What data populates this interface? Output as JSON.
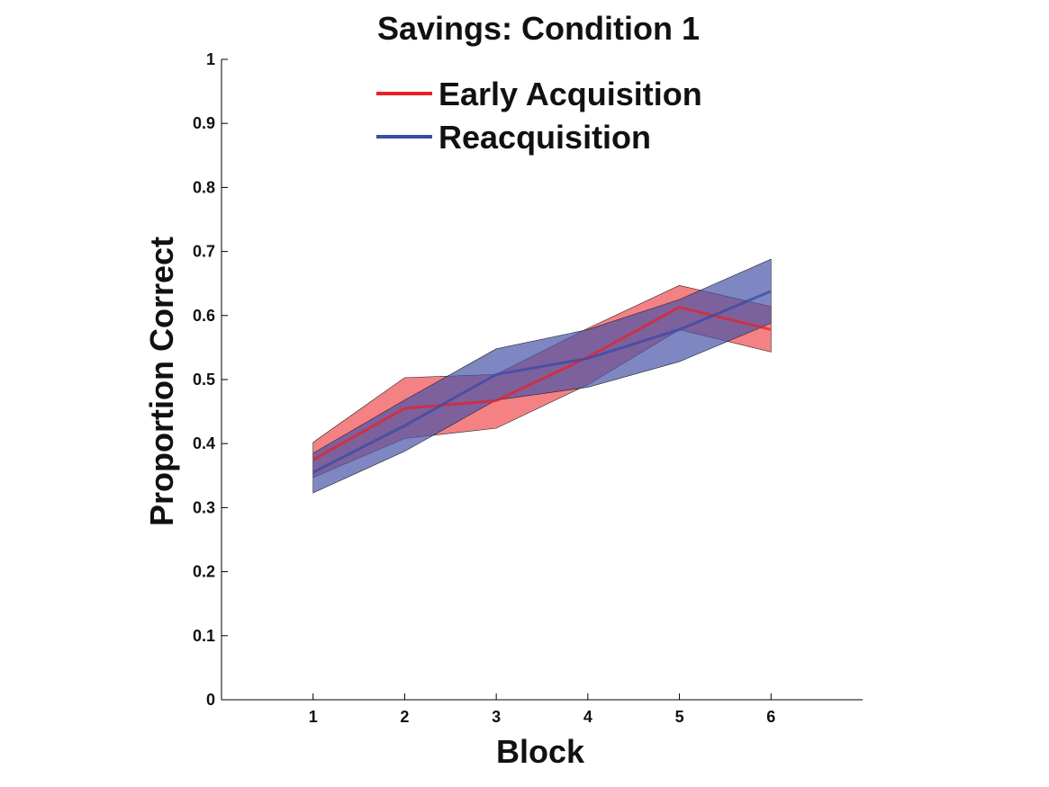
{
  "chart_data": {
    "type": "line",
    "title": "Savings: Condition 1",
    "xlabel": "Block",
    "ylabel": "Proportion Correct",
    "xlim": [
      0,
      7
    ],
    "ylim": [
      0,
      1
    ],
    "x_ticks": [
      "1",
      "2",
      "3",
      "4",
      "5",
      "6"
    ],
    "y_ticks": [
      "0",
      "0.1",
      "0.2",
      "0.3",
      "0.4",
      "0.5",
      "0.6",
      "0.7",
      "0.8",
      "0.9",
      "1"
    ],
    "grid": false,
    "legend_position": "top",
    "x": [
      1,
      2,
      3,
      4,
      5,
      6
    ],
    "series": [
      {
        "name": "Early Acquisition",
        "color": "#e8202a",
        "fill_color": "#ef4c4f",
        "mean": [
          0.375,
          0.455,
          0.467,
          0.535,
          0.613,
          0.578
        ],
        "upper": [
          0.402,
          0.503,
          0.508,
          0.58,
          0.647,
          0.614
        ],
        "lower": [
          0.347,
          0.408,
          0.424,
          0.492,
          0.578,
          0.543
        ]
      },
      {
        "name": "Reacquisition",
        "color": "#3a4aa5",
        "fill_color": "#4854a8",
        "mean": [
          0.355,
          0.428,
          0.508,
          0.533,
          0.578,
          0.638
        ],
        "upper": [
          0.385,
          0.468,
          0.548,
          0.578,
          0.625,
          0.688
        ],
        "lower": [
          0.323,
          0.388,
          0.468,
          0.488,
          0.528,
          0.588
        ]
      }
    ]
  }
}
